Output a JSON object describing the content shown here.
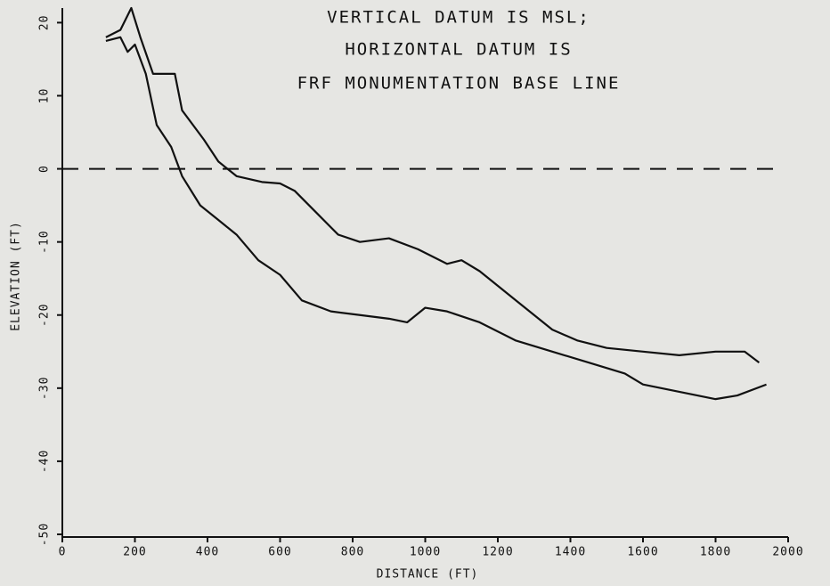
{
  "chart_data": {
    "type": "line",
    "title_lines": [
      "VERTICAL DATUM IS MSL;",
      "HORIZONTAL DATUM IS",
      "FRF MONUMENTATION BASE LINE"
    ],
    "x_label": "DISTANCE (FT)",
    "y_label": "ELEVATION (FT)",
    "xlim": [
      0,
      2000
    ],
    "ylim": [
      -50,
      22
    ],
    "xticks": [
      0,
      200,
      400,
      600,
      800,
      1000,
      1200,
      1400,
      1600,
      1800,
      2000
    ],
    "yticks": [
      -50,
      -40,
      -30,
      -20,
      -10,
      0,
      10,
      20
    ],
    "reference_line": 0,
    "series": [
      {
        "color": "#111111",
        "x": [
          120,
          160,
          190,
          215,
          250,
          310,
          330,
          390,
          430,
          480,
          550,
          600,
          640,
          700,
          760,
          820,
          900,
          980,
          1060,
          1100,
          1150,
          1250,
          1350,
          1420,
          1500,
          1600,
          1700,
          1800,
          1880,
          1920
        ],
        "values": [
          18,
          19,
          22,
          18,
          13,
          13,
          8,
          4,
          1,
          -1,
          -1.8,
          -2,
          -3,
          -6,
          -9,
          -10,
          -9.5,
          -11,
          -13,
          -12.5,
          -14,
          -18,
          -22,
          -23.5,
          -24.5,
          -25,
          -25.5,
          -25,
          -25,
          -26.5
        ]
      },
      {
        "color": "#111111",
        "x": [
          120,
          160,
          180,
          200,
          230,
          260,
          300,
          330,
          380,
          430,
          480,
          540,
          600,
          660,
          740,
          820,
          900,
          950,
          1000,
          1060,
          1150,
          1250,
          1350,
          1450,
          1550,
          1600,
          1700,
          1800,
          1860,
          1940
        ],
        "values": [
          17.5,
          18,
          16,
          17,
          13,
          6,
          3,
          -1,
          -5,
          -7,
          -9,
          -12.5,
          -14.5,
          -18,
          -19.5,
          -20,
          -20.5,
          -21,
          -19,
          -19.5,
          -21,
          -23.5,
          -25,
          -26.5,
          -28,
          -29.5,
          -30.5,
          -31.5,
          -31,
          -29.5
        ]
      }
    ]
  }
}
